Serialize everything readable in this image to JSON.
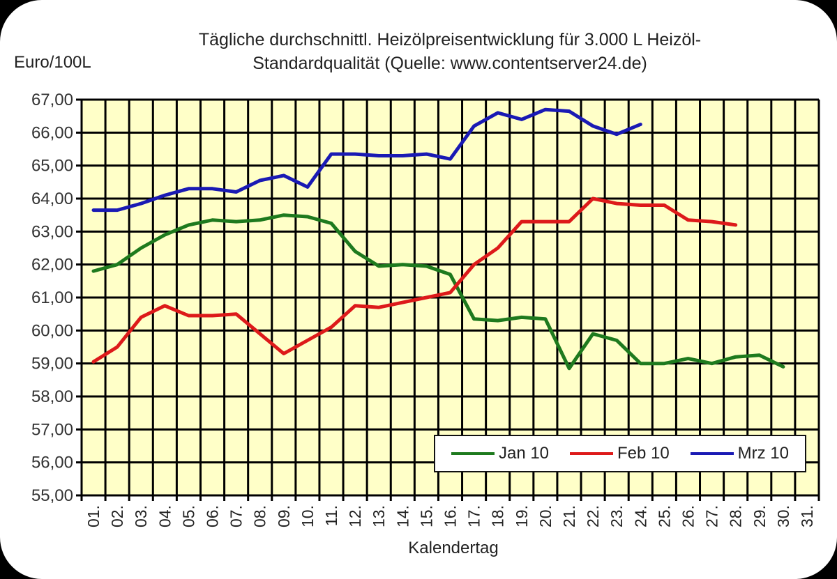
{
  "chart_data": {
    "type": "line",
    "title": "Tägliche durchschnittl. Heizölpreisentwicklung für 3.000 L Heizöl-Standardqualität (Quelle: www.contentserver24.de)",
    "title_lines": [
      "Tägliche durchschnittl. Heizölpreisentwicklung für 3.000 L Heizöl-",
      "Standardqualität (Quelle: www.contentserver24.de)"
    ],
    "xlabel": "Kalendertag",
    "ylabel": "Euro/100L",
    "ylim": [
      55,
      67
    ],
    "y_ticks": [
      "67,00",
      "66,00",
      "65,00",
      "64,00",
      "63,00",
      "62,00",
      "61,00",
      "60,00",
      "59,00",
      "58,00",
      "57,00",
      "56,00",
      "55,00"
    ],
    "categories": [
      "01.",
      "02.",
      "03.",
      "04.",
      "05.",
      "06.",
      "07.",
      "08.",
      "09.",
      "10.",
      "11.",
      "12.",
      "13.",
      "14.",
      "15.",
      "16.",
      "17.",
      "18.",
      "19.",
      "20.",
      "21.",
      "22.",
      "23.",
      "24.",
      "25.",
      "26.",
      "27.",
      "28.",
      "29.",
      "30.",
      "31."
    ],
    "grid": true,
    "legend_position": "bottom-right inside",
    "plot_background": "#ffffc8",
    "series": [
      {
        "name": "Jan 10",
        "color": "#1e7a1e",
        "values": [
          61.8,
          62.0,
          62.5,
          62.9,
          63.2,
          63.35,
          63.3,
          63.35,
          63.5,
          63.45,
          63.25,
          62.4,
          61.95,
          62.0,
          61.95,
          61.7,
          60.35,
          60.3,
          60.4,
          60.35,
          58.85,
          59.9,
          59.7,
          59.0,
          59.0,
          59.15,
          59.0,
          59.2,
          59.25,
          58.9
        ]
      },
      {
        "name": "Feb 10",
        "color": "#dd1a1a",
        "values": [
          59.05,
          59.5,
          60.4,
          60.75,
          60.45,
          60.45,
          60.5,
          59.9,
          59.3,
          59.7,
          60.1,
          60.75,
          60.7,
          60.85,
          61.0,
          61.15,
          62.0,
          62.5,
          63.3,
          63.3,
          63.3,
          64.0,
          63.85,
          63.8,
          63.8,
          63.35,
          63.3,
          63.2
        ]
      },
      {
        "name": "Mrz 10",
        "color": "#1a1ab4",
        "values": [
          63.65,
          63.65,
          63.85,
          64.1,
          64.3,
          64.3,
          64.2,
          64.55,
          64.7,
          64.35,
          65.35,
          65.35,
          65.3,
          65.3,
          65.35,
          65.2,
          66.2,
          66.6,
          66.4,
          66.7,
          66.65,
          66.2,
          65.95,
          66.25
        ]
      }
    ]
  }
}
